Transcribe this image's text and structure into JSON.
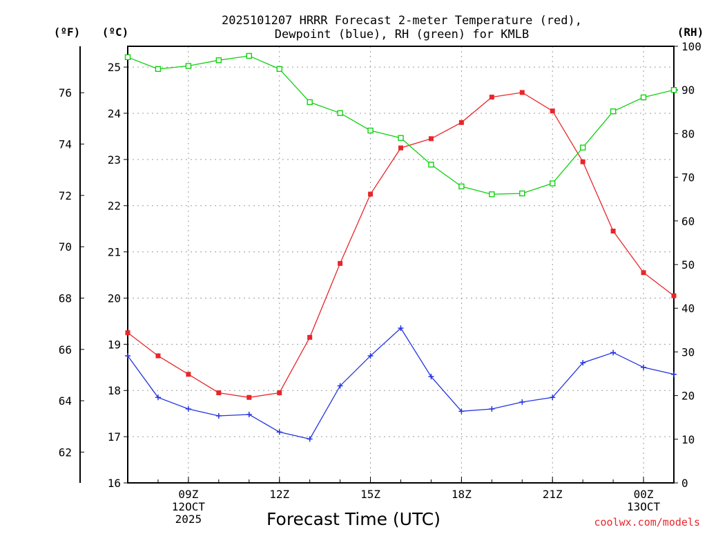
{
  "chart_data": {
    "type": "line",
    "title_line1": "2025101207 HRRR Forecast 2-meter Temperature (red),",
    "title_line2": "Dewpoint (blue), RH (green) for KMLB",
    "xlabel": "Forecast Time (UTC)",
    "credit": "coolwx.com/models",
    "left_unit_f": "(ºF)",
    "left_unit_c": "(ºC)",
    "right_unit": "(RH)",
    "colors": {
      "temperature": "#e8262a",
      "dewpoint": "#2233e0",
      "rh": "#10d010"
    },
    "x_hours": [
      7,
      8,
      9,
      10,
      11,
      12,
      13,
      14,
      15,
      16,
      17,
      18,
      19,
      20,
      21,
      22,
      23,
      24,
      25
    ],
    "xlim": [
      7,
      25
    ],
    "x_ticks": [
      {
        "hour": 9,
        "lines": [
          "09Z",
          "12OCT",
          "2025"
        ]
      },
      {
        "hour": 12,
        "lines": [
          "12Z"
        ]
      },
      {
        "hour": 15,
        "lines": [
          "15Z"
        ]
      },
      {
        "hour": 18,
        "lines": [
          "18Z"
        ]
      },
      {
        "hour": 21,
        "lines": [
          "21Z"
        ]
      },
      {
        "hour": 24,
        "lines": [
          "00Z",
          "13OCT"
        ]
      }
    ],
    "ylim_c": [
      16,
      25.45
    ],
    "yticks_c": [
      "16",
      "17",
      "18",
      "19",
      "20",
      "21",
      "22",
      "23",
      "24",
      "25"
    ],
    "ylim_f": [
      60.8,
      77.81
    ],
    "yticks_f": [
      "62",
      "64",
      "66",
      "68",
      "70",
      "72",
      "74",
      "76"
    ],
    "ylim_rh": [
      0,
      100
    ],
    "yticks_rh": [
      "0",
      "10",
      "20",
      "30",
      "40",
      "50",
      "60",
      "70",
      "80",
      "90",
      "100"
    ],
    "series": [
      {
        "name": "Temperature",
        "unit": "C",
        "marker": "filled-square",
        "values": [
          19.25,
          18.75,
          18.35,
          17.95,
          17.85,
          17.95,
          19.15,
          20.75,
          22.25,
          23.25,
          23.45,
          23.8,
          24.35,
          24.45,
          24.05,
          22.95,
          21.45,
          20.55,
          20.05
        ]
      },
      {
        "name": "Dewpoint",
        "unit": "C",
        "marker": "plus",
        "values": [
          18.75,
          17.85,
          17.6,
          17.45,
          17.48,
          17.1,
          16.95,
          18.1,
          18.75,
          19.35,
          18.3,
          17.55,
          17.6,
          17.75,
          17.85,
          18.6,
          18.82,
          18.5,
          18.35
        ]
      },
      {
        "name": "RH",
        "unit": "%",
        "marker": "open-square",
        "values": [
          97.5,
          94.8,
          95.5,
          96.8,
          97.8,
          94.8,
          87.2,
          84.7,
          80.7,
          79.0,
          72.9,
          67.9,
          66.1,
          66.3,
          68.6,
          76.8,
          85.1,
          88.3,
          90.0
        ]
      }
    ]
  }
}
